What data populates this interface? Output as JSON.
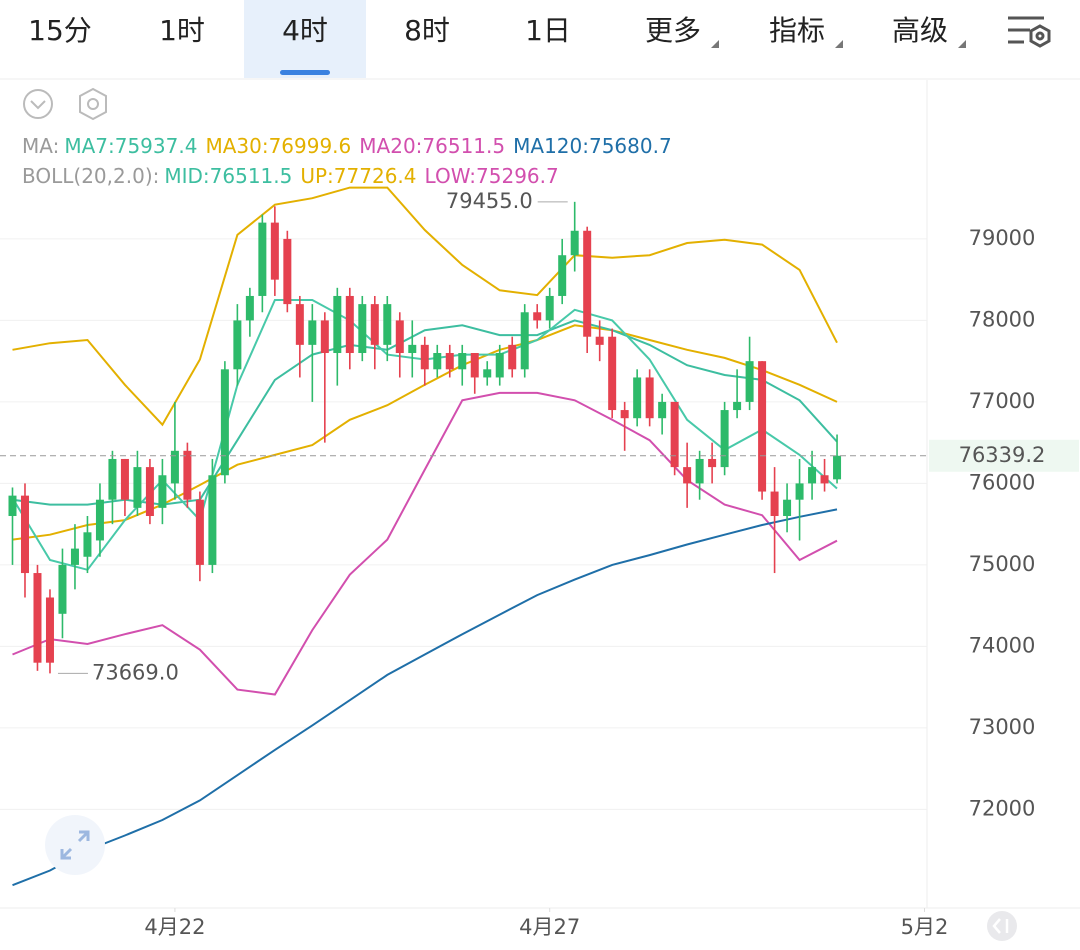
{
  "tabs": [
    "15分",
    "1时",
    "4时",
    "8时",
    "1日",
    "更多",
    "指标",
    "高级"
  ],
  "active_tab": 2,
  "indicator_lines": [
    {
      "prefix": "MA:",
      "items": [
        {
          "text": "MA7:75937.4",
          "color": "#3dbea0"
        },
        {
          "text": "MA30:76999.6",
          "color": "#e3b000"
        },
        {
          "text": "MA20:76511.5",
          "color": "#d24fae"
        },
        {
          "text": "MA120:75680.7",
          "color": "#1f6fa8"
        }
      ]
    },
    {
      "prefix": "BOLL(20,2.0):",
      "items": [
        {
          "text": "MID:76511.5",
          "color": "#3dbea0"
        },
        {
          "text": "UP:77726.4",
          "color": "#e3b000"
        },
        {
          "text": "LOW:75296.7",
          "color": "#d24fae"
        }
      ]
    }
  ],
  "chart_data": {
    "type": "candlestick",
    "up_color": "#2dba6a",
    "down_color": "#e5414f",
    "x": [
      0,
      1,
      2,
      3,
      4,
      5,
      6,
      7,
      8,
      9,
      10,
      11,
      12,
      13,
      14,
      15,
      16,
      17,
      18,
      19,
      20,
      21,
      22,
      23,
      24,
      25,
      26,
      27,
      28,
      29,
      30,
      31,
      32,
      33,
      34,
      35,
      36,
      37,
      38,
      39,
      40,
      41,
      42,
      43,
      44,
      45,
      46,
      47,
      48,
      49,
      50,
      51,
      52,
      53,
      54,
      55,
      56,
      57,
      58,
      59,
      60,
      61,
      62,
      63,
      64,
      65,
      66
    ],
    "open": [
      75600,
      75850,
      74900,
      74600,
      74400,
      75000,
      75100,
      75300,
      75800,
      76300,
      75700,
      76200,
      75700,
      76000,
      76400,
      75800,
      75000,
      76100,
      77400,
      78000,
      78300,
      79200,
      79000,
      78200,
      77700,
      78000,
      77600,
      78300,
      77600,
      78200,
      77700,
      78000,
      77600,
      77700,
      77400,
      77600,
      77400,
      77600,
      77300,
      77300,
      77700,
      77400,
      78100,
      78000,
      78300,
      78800,
      79100,
      77800,
      77800,
      76900,
      76800,
      77300,
      76800,
      77000,
      76200,
      76000,
      76300,
      76200,
      76900,
      77000,
      77500,
      75900,
      75600,
      75800,
      76000,
      76100,
      76050
    ],
    "high": [
      75950,
      76000,
      75000,
      74700,
      75200,
      75500,
      75600,
      76000,
      76400,
      76300,
      76400,
      76300,
      76300,
      77000,
      76500,
      75900,
      76300,
      77500,
      78200,
      78400,
      79300,
      79400,
      79100,
      78300,
      78200,
      78100,
      78400,
      78400,
      78300,
      78300,
      78300,
      78100,
      78000,
      77800,
      77700,
      77700,
      77700,
      77600,
      77500,
      77700,
      77800,
      78200,
      78200,
      78400,
      79000,
      79455,
      79150,
      78000,
      77900,
      77000,
      77400,
      77400,
      77100,
      77000,
      76500,
      76400,
      76500,
      77000,
      77400,
      77800,
      77500,
      76200,
      76000,
      76300,
      76400,
      76300,
      76600
    ],
    "low": [
      75000,
      74600,
      73700,
      73669,
      74100,
      74700,
      74900,
      75100,
      75500,
      75600,
      75600,
      75500,
      75500,
      75800,
      75700,
      74800,
      74900,
      76000,
      77200,
      77800,
      78100,
      78300,
      78100,
      77300,
      77000,
      76500,
      77200,
      77400,
      77500,
      77400,
      77500,
      77300,
      77300,
      77200,
      77300,
      77300,
      77200,
      77100,
      77200,
      77200,
      77300,
      77300,
      77900,
      77900,
      78200,
      78600,
      77600,
      77500,
      76800,
      76400,
      76700,
      76700,
      76600,
      76100,
      75700,
      75800,
      76000,
      76100,
      76800,
      76900,
      75800,
      74900,
      75400,
      75300,
      75800,
      75900,
      76000
    ],
    "close": [
      75850,
      74900,
      73800,
      73800,
      75000,
      75200,
      75400,
      75800,
      76300,
      75800,
      76200,
      75600,
      76100,
      76400,
      75800,
      75000,
      76100,
      77400,
      78000,
      78300,
      79200,
      78500,
      78200,
      77700,
      78000,
      77600,
      78300,
      77600,
      78200,
      77700,
      78200,
      77600,
      77700,
      77400,
      77600,
      77400,
      77600,
      77300,
      77400,
      77600,
      77400,
      78100,
      78000,
      78300,
      78800,
      79100,
      77800,
      77700,
      76900,
      76800,
      77300,
      76800,
      77000,
      76200,
      76000,
      76300,
      76200,
      76900,
      77000,
      77500,
      75900,
      75600,
      75800,
      76000,
      76200,
      76000,
      76339.2
    ],
    "lines": [
      {
        "color": "#e3b000",
        "x": [
          0,
          3,
          6,
          9,
          12,
          15,
          18,
          21,
          24,
          27,
          30,
          33,
          36,
          39,
          42,
          45,
          48,
          51,
          54,
          57,
          60,
          63,
          66
        ],
        "values": [
          77640,
          77720,
          77760,
          77210,
          76720,
          77520,
          79050,
          79420,
          79500,
          79630,
          79630,
          79110,
          78680,
          78370,
          78310,
          78800,
          78770,
          78800,
          78950,
          78990,
          78930,
          78620,
          77726.4
        ]
      },
      {
        "color": "#e3b000",
        "x": [
          0,
          3,
          6,
          9,
          12,
          15,
          18,
          21,
          24,
          27,
          30,
          33,
          36,
          39,
          42,
          45,
          48,
          51,
          54,
          57,
          60,
          63,
          66
        ],
        "values": [
          75310,
          75370,
          75490,
          75550,
          75740,
          75980,
          76230,
          76350,
          76470,
          76780,
          76960,
          77210,
          77450,
          77640,
          77760,
          77940,
          77880,
          77760,
          77640,
          77540,
          77390,
          77210,
          76999.6
        ]
      },
      {
        "color": "#3dbea0",
        "x": [
          0,
          3,
          6,
          9,
          12,
          15,
          18,
          21,
          24,
          27,
          30,
          33,
          36,
          39,
          42,
          45,
          48,
          51,
          54,
          57,
          60,
          63,
          66
        ],
        "values": [
          75800,
          75740,
          75740,
          75800,
          75740,
          75800,
          76530,
          77270,
          77580,
          77700,
          77640,
          77880,
          77940,
          77820,
          77820,
          78000,
          77880,
          77700,
          77450,
          77330,
          77270,
          77020,
          76511.5
        ]
      },
      {
        "color": "#48c9a9",
        "x": [
          0,
          3,
          6,
          9,
          12,
          15,
          18,
          21,
          24,
          27,
          30,
          33,
          36,
          39,
          42,
          45,
          48,
          51,
          54,
          57,
          60,
          63,
          66
        ],
        "values": [
          75820,
          75060,
          74940,
          75550,
          76040,
          75550,
          77210,
          78250,
          78250,
          78000,
          77580,
          77520,
          77580,
          77580,
          77760,
          78130,
          78000,
          77520,
          76780,
          76410,
          76660,
          76350,
          75937.4
        ]
      },
      {
        "color": "#d24fae",
        "x": [
          0,
          3,
          6,
          9,
          12,
          15,
          18,
          21,
          24,
          27,
          30,
          33,
          36,
          39,
          42,
          45,
          48,
          51,
          54,
          57,
          60,
          63,
          66
        ],
        "values": [
          73900,
          74090,
          74030,
          74150,
          74260,
          73960,
          73470,
          73410,
          74200,
          74880,
          75310,
          76170,
          77020,
          77110,
          77110,
          77020,
          76780,
          76530,
          76040,
          75740,
          75610,
          75060,
          75296.7
        ]
      },
      {
        "color": "#1f6fa8",
        "x": [
          0,
          3,
          6,
          9,
          12,
          15,
          18,
          21,
          24,
          27,
          30,
          33,
          36,
          39,
          42,
          45,
          48,
          51,
          54,
          57,
          60,
          63,
          66
        ],
        "values": [
          71070,
          71250,
          71500,
          71680,
          71870,
          72110,
          72420,
          72730,
          73030,
          73340,
          73650,
          73900,
          74150,
          74390,
          74630,
          74820,
          75000,
          75120,
          75250,
          75370,
          75490,
          75590,
          75680.7
        ]
      }
    ],
    "annotations": [
      {
        "x": 45,
        "value": 79455,
        "label": "79455.0",
        "side": "high"
      },
      {
        "x": 3,
        "value": 73669,
        "label": "73669.0",
        "side": "low"
      }
    ],
    "last_price": 76339.2,
    "xlim": [
      -1,
      73.2
    ],
    "xticks": [
      {
        "value": 13,
        "label": "4月22"
      },
      {
        "value": 43,
        "label": "4月27"
      },
      {
        "value": 73,
        "label": "5月2"
      }
    ],
    "ylim": [
      70790,
      80950
    ],
    "yticks": [
      72000,
      73000,
      74000,
      75000,
      76000,
      77000,
      78000,
      79000
    ],
    "grid": true
  }
}
